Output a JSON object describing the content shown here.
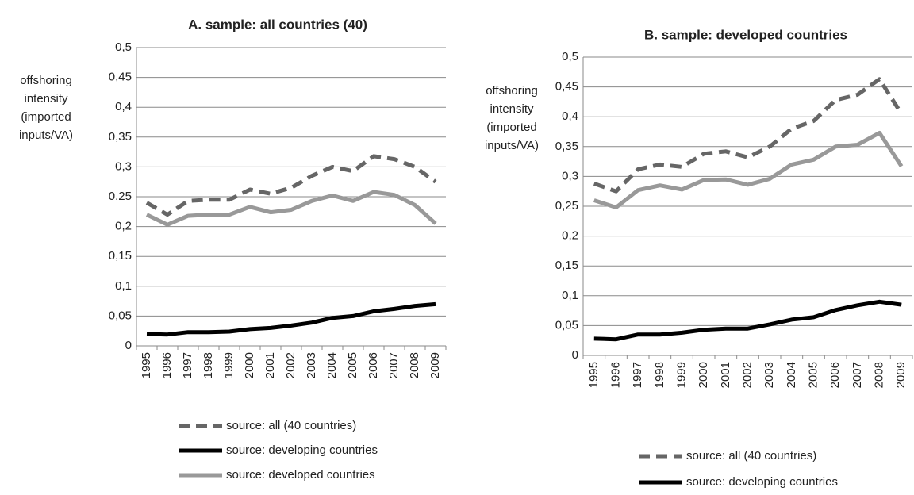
{
  "chart_data": [
    {
      "type": "line",
      "title": "A. sample: all countries (40)",
      "ylabel": [
        "offshoring",
        "intensity",
        "(imported",
        "inputs/VA)"
      ],
      "categories": [
        "1995",
        "1996",
        "1997",
        "1998",
        "1999",
        "2000",
        "2001",
        "2002",
        "2003",
        "2004",
        "2005",
        "2006",
        "2007",
        "2008",
        "2009"
      ],
      "ylim": [
        0,
        0.5
      ],
      "yticks": [
        0,
        {
          "value": 0.05,
          "label": "0,05"
        },
        {
          "value": 0.1,
          "label": "0,1"
        },
        {
          "value": 0.15,
          "label": "0,15"
        },
        {
          "value": 0.2,
          "label": "0,2"
        },
        {
          "value": 0.25,
          "label": "0,25"
        },
        {
          "value": 0.3,
          "label": "0,3"
        },
        {
          "value": 0.35,
          "label": "0,35"
        },
        {
          "value": 0.4,
          "label": "0,4"
        },
        {
          "value": 0.45,
          "label": "0,45"
        },
        {
          "value": 0.5,
          "label": "0,5"
        }
      ],
      "grid": true,
      "series": [
        {
          "name": "source: all (40 countries)",
          "color": "#666666",
          "dashed": true,
          "values": [
            0.24,
            0.22,
            0.243,
            0.245,
            0.245,
            0.262,
            0.255,
            0.265,
            0.285,
            0.3,
            0.293,
            0.318,
            0.313,
            0.3,
            0.275
          ]
        },
        {
          "name": "source: developing countries",
          "color": "#000000",
          "dashed": false,
          "values": [
            0.02,
            0.019,
            0.023,
            0.023,
            0.024,
            0.028,
            0.03,
            0.034,
            0.039,
            0.047,
            0.05,
            0.058,
            0.062,
            0.067,
            0.07
          ]
        },
        {
          "name": "source: developed countries",
          "color": "#999999",
          "dashed": false,
          "values": [
            0.22,
            0.203,
            0.218,
            0.22,
            0.22,
            0.233,
            0.224,
            0.228,
            0.243,
            0.252,
            0.243,
            0.258,
            0.253,
            0.236,
            0.205
          ]
        }
      ]
    },
    {
      "type": "line",
      "title": "B. sample: developed countries",
      "ylabel": [
        "offshoring",
        "intensity",
        "(imported",
        "inputs/VA)"
      ],
      "categories": [
        "1995",
        "1996",
        "1997",
        "1998",
        "1999",
        "2000",
        "2001",
        "2002",
        "2003",
        "2004",
        "2005",
        "2006",
        "2007",
        "2008",
        "2009"
      ],
      "ylim": [
        0,
        0.5
      ],
      "yticks": [
        0,
        {
          "value": 0.05,
          "label": "0,05"
        },
        {
          "value": 0.1,
          "label": "0,1"
        },
        {
          "value": 0.15,
          "label": "0,15"
        },
        {
          "value": 0.2,
          "label": "0,2"
        },
        {
          "value": 0.25,
          "label": "0,25"
        },
        {
          "value": 0.3,
          "label": "0,3"
        },
        {
          "value": 0.35,
          "label": "0,35"
        },
        {
          "value": 0.4,
          "label": "0,4"
        },
        {
          "value": 0.45,
          "label": "0,45"
        },
        {
          "value": 0.5,
          "label": "0,5"
        }
      ],
      "grid": true,
      "series": [
        {
          "name": "source: all (40 countries)",
          "color": "#666666",
          "dashed": true,
          "values": [
            0.288,
            0.275,
            0.312,
            0.32,
            0.316,
            0.338,
            0.342,
            0.332,
            0.35,
            0.38,
            0.393,
            0.428,
            0.437,
            0.463,
            0.405
          ]
        },
        {
          "name": "source: developing countries",
          "color": "#000000",
          "dashed": false,
          "values": [
            0.028,
            0.027,
            0.035,
            0.035,
            0.038,
            0.043,
            0.045,
            0.045,
            0.052,
            0.06,
            0.064,
            0.076,
            0.084,
            0.09,
            0.085
          ]
        },
        {
          "name": "source: developed countries",
          "color": "#999999",
          "dashed": false,
          "values": [
            0.26,
            0.248,
            0.277,
            0.285,
            0.278,
            0.294,
            0.295,
            0.286,
            0.296,
            0.32,
            0.328,
            0.35,
            0.353,
            0.373,
            0.317
          ]
        }
      ]
    }
  ]
}
